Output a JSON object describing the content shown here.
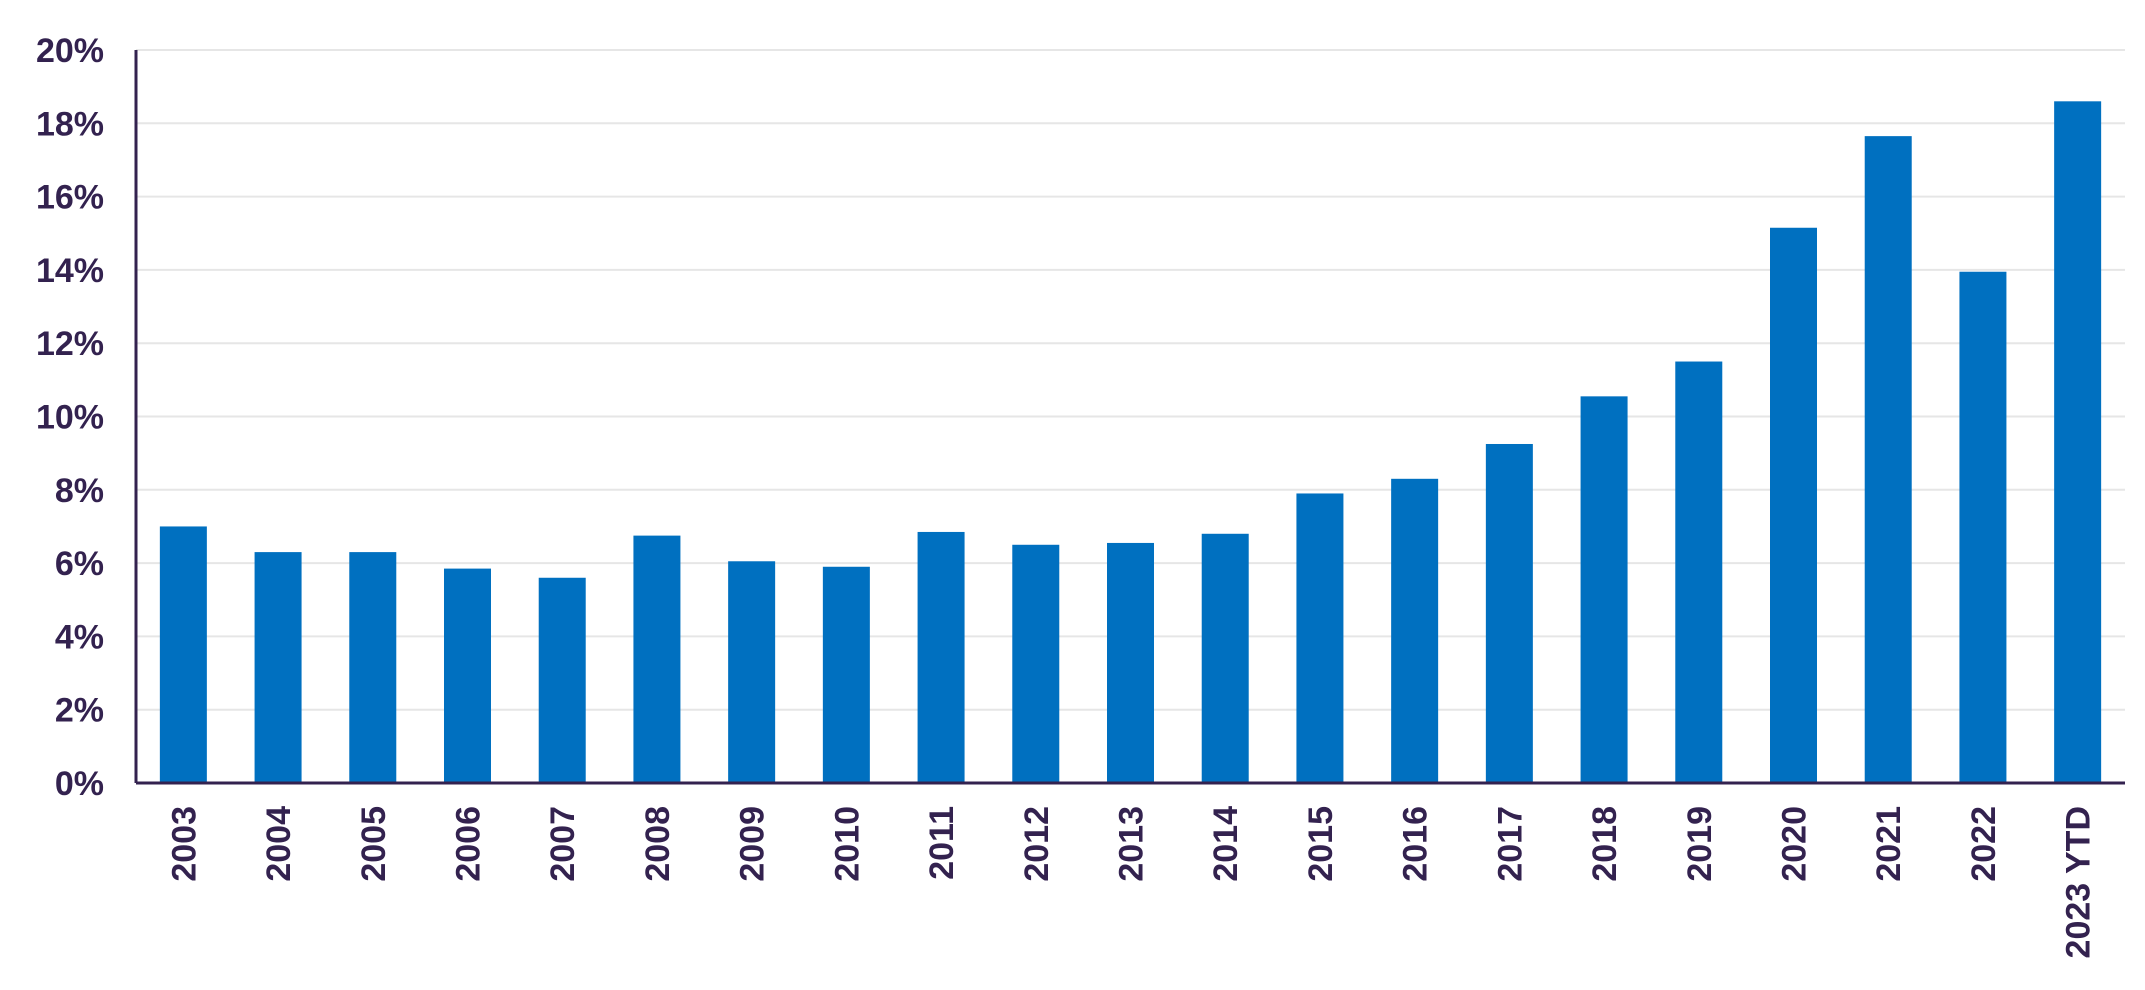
{
  "chart_data": {
    "type": "bar",
    "title": "",
    "xlabel": "",
    "ylabel": "",
    "categories": [
      "2003",
      "2004",
      "2005",
      "2006",
      "2007",
      "2008",
      "2009",
      "2010",
      "2011",
      "2012",
      "2013",
      "2014",
      "2015",
      "2016",
      "2017",
      "2018",
      "2019",
      "2020",
      "2021",
      "2022",
      "2023 YTD"
    ],
    "values": [
      7.0,
      6.3,
      6.3,
      5.85,
      5.6,
      6.75,
      6.05,
      5.9,
      6.85,
      6.5,
      6.55,
      6.8,
      7.9,
      8.3,
      9.25,
      10.55,
      11.5,
      15.15,
      17.65,
      13.95,
      18.6
    ],
    "ylim": [
      0,
      20
    ],
    "yticks": [
      0,
      2,
      4,
      6,
      8,
      10,
      12,
      14,
      16,
      18,
      20
    ],
    "ytick_labels": [
      "0%",
      "2%",
      "4%",
      "6%",
      "8%",
      "10%",
      "12%",
      "14%",
      "16%",
      "18%",
      "20%"
    ],
    "grid": true,
    "legend": "none",
    "colors": {
      "bar": "#0070c0",
      "axis": "#33224f",
      "text": "#33224f",
      "grid": "#e6e6e6"
    }
  }
}
